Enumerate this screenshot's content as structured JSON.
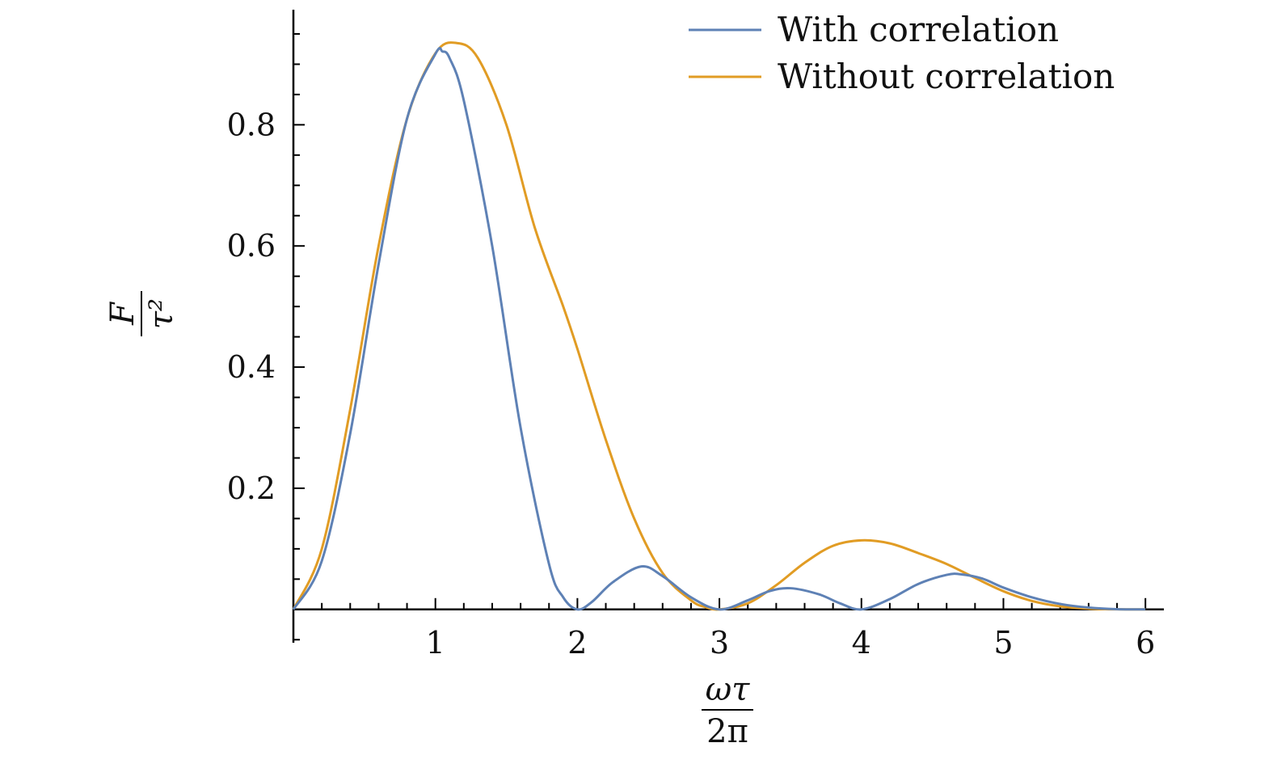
{
  "chart_data": {
    "type": "line",
    "title": "",
    "xlabel": {
      "numerator": "ωτ",
      "denominator": "2π"
    },
    "ylabel": {
      "numerator": "F",
      "denominator": "τ²"
    },
    "xlim": [
      0,
      6.13
    ],
    "ylim": [
      -0.055,
      0.99
    ],
    "xticks": [
      1,
      2,
      3,
      4,
      5,
      6
    ],
    "xtick_labels": [
      "1",
      "2",
      "3",
      "4",
      "5",
      "6"
    ],
    "yticks": [
      0.2,
      0.4,
      0.6,
      0.8
    ],
    "ytick_labels": [
      "0.2",
      "0.4",
      "0.6",
      "0.8"
    ],
    "grid": false,
    "legend_position": "top-right",
    "series": [
      {
        "name": "With correlation",
        "color": "#5e81b5",
        "x": [
          0,
          0.2,
          0.4,
          0.6,
          0.8,
          1.0,
          1.05,
          1.1,
          1.2,
          1.4,
          1.6,
          1.8,
          1.9,
          2.0,
          2.1,
          2.25,
          2.45,
          2.6,
          2.8,
          3.0,
          3.2,
          3.35,
          3.5,
          3.7,
          3.85,
          4.0,
          4.2,
          4.4,
          4.6,
          4.7,
          4.85,
          5.0,
          5.2,
          5.4,
          5.6,
          5.8,
          6.0
        ],
        "y": [
          0.0,
          0.08,
          0.29,
          0.57,
          0.81,
          0.917,
          0.921,
          0.91,
          0.84,
          0.6,
          0.3,
          0.075,
          0.02,
          0.0,
          0.012,
          0.045,
          0.071,
          0.055,
          0.02,
          0.0,
          0.015,
          0.03,
          0.035,
          0.025,
          0.01,
          0.0,
          0.017,
          0.042,
          0.057,
          0.058,
          0.051,
          0.036,
          0.02,
          0.009,
          0.003,
          0.0004,
          0.0
        ]
      },
      {
        "name": "Without correlation",
        "color": "#e19c24",
        "x": [
          0,
          0.2,
          0.4,
          0.6,
          0.8,
          1.0,
          1.15,
          1.3,
          1.5,
          1.7,
          1.9,
          2.0,
          2.2,
          2.4,
          2.6,
          2.8,
          2.9,
          3.0,
          3.2,
          3.4,
          3.6,
          3.8,
          4.0,
          4.2,
          4.4,
          4.6,
          4.8,
          5.0,
          5.2,
          5.4,
          5.6,
          5.8,
          6.0
        ],
        "y": [
          0.0,
          0.1,
          0.33,
          0.6,
          0.81,
          0.918,
          0.935,
          0.91,
          0.8,
          0.63,
          0.5,
          0.43,
          0.28,
          0.15,
          0.06,
          0.015,
          0.004,
          0.0,
          0.01,
          0.04,
          0.077,
          0.105,
          0.114,
          0.109,
          0.093,
          0.075,
          0.052,
          0.03,
          0.014,
          0.005,
          0.0013,
          0.0002,
          0.0
        ]
      }
    ]
  }
}
